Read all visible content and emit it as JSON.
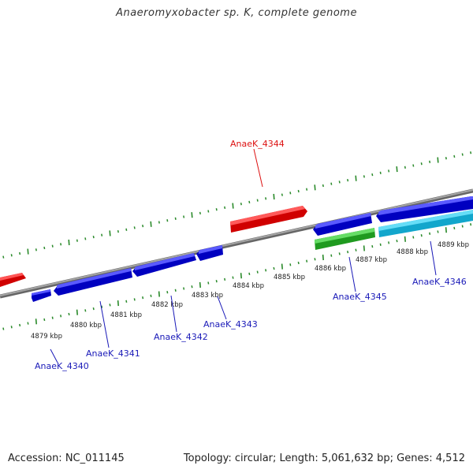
{
  "title": "Anaeromyxobacter sp. K, complete genome",
  "footer": {
    "accession": "Accession: NC_011145",
    "summary": "Topology: circular; Length: 5,061,632 bp; Genes: 4,512"
  },
  "colors": {
    "forward_gene": "#0a0ad9",
    "reverse_gene": "#ee1111",
    "green_gene": "#33cc33",
    "cyan_gene": "#33ccee",
    "backbone": "#888888",
    "tick": "#2a8a2a",
    "label_blue": "#1a1ab8",
    "label_red": "#dd1111"
  },
  "kbp_labels": [
    "4879 kbp",
    "4880 kbp",
    "4881 kbp",
    "4882 kbp",
    "4883 kbp",
    "4884 kbp",
    "4885 kbp",
    "4886 kbp",
    "4887 kbp",
    "4888 kbp",
    "4889 kbp"
  ],
  "gene_labels": {
    "g4340": "AnaeK_4340",
    "g4341": "AnaeK_4341",
    "g4342": "AnaeK_4342",
    "g4343": "AnaeK_4343",
    "g4344": "AnaeK_4344",
    "g4345": "AnaeK_4345",
    "g4346": "AnaeK_4346"
  }
}
